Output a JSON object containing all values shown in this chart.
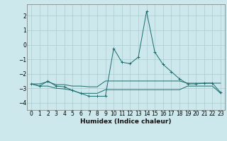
{
  "title": "",
  "xlabel": "Humidex (Indice chaleur)",
  "bg_color": "#cce8ec",
  "grid_color": "#aacccc",
  "line_color": "#1a6b6b",
  "xlim": [
    -0.5,
    23.5
  ],
  "ylim": [
    -4.5,
    2.8
  ],
  "yticks": [
    -4,
    -3,
    -2,
    -1,
    0,
    1,
    2
  ],
  "xticks": [
    0,
    1,
    2,
    3,
    4,
    5,
    6,
    7,
    8,
    9,
    10,
    11,
    12,
    13,
    14,
    15,
    16,
    17,
    18,
    19,
    20,
    21,
    22,
    23
  ],
  "series": {
    "main": {
      "x": [
        0,
        1,
        2,
        3,
        4,
        5,
        6,
        7,
        8,
        9,
        10,
        11,
        12,
        13,
        14,
        15,
        16,
        17,
        18,
        19,
        20,
        21,
        22,
        23
      ],
      "y": [
        -2.7,
        -2.85,
        -2.5,
        -2.85,
        -2.9,
        -3.15,
        -3.35,
        -3.55,
        -3.55,
        -3.55,
        -0.25,
        -1.2,
        -1.3,
        -0.85,
        2.3,
        -0.5,
        -1.35,
        -1.85,
        -2.35,
        -2.7,
        -2.7,
        -2.65,
        -2.65,
        -3.3
      ]
    },
    "upper": {
      "x": [
        0,
        1,
        2,
        3,
        4,
        5,
        6,
        7,
        8,
        9,
        10,
        11,
        12,
        13,
        14,
        15,
        16,
        17,
        18,
        19,
        20,
        21,
        22,
        23
      ],
      "y": [
        -2.7,
        -2.7,
        -2.55,
        -2.75,
        -2.75,
        -2.85,
        -2.85,
        -2.9,
        -2.9,
        -2.5,
        -2.5,
        -2.5,
        -2.5,
        -2.5,
        -2.5,
        -2.5,
        -2.5,
        -2.5,
        -2.5,
        -2.65,
        -2.65,
        -2.65,
        -2.65,
        -2.65
      ]
    },
    "lower": {
      "x": [
        0,
        1,
        2,
        3,
        4,
        5,
        6,
        7,
        8,
        9,
        10,
        11,
        12,
        13,
        14,
        15,
        16,
        17,
        18,
        19,
        20,
        21,
        22,
        23
      ],
      "y": [
        -2.7,
        -2.85,
        -2.85,
        -3.0,
        -3.05,
        -3.15,
        -3.35,
        -3.35,
        -3.35,
        -3.1,
        -3.1,
        -3.1,
        -3.1,
        -3.1,
        -3.1,
        -3.1,
        -3.1,
        -3.1,
        -3.1,
        -2.85,
        -2.85,
        -2.85,
        -2.85,
        -3.35
      ]
    }
  },
  "tick_fontsize": 5.5,
  "xlabel_fontsize": 6.5,
  "xlabel_fontweight": "bold"
}
